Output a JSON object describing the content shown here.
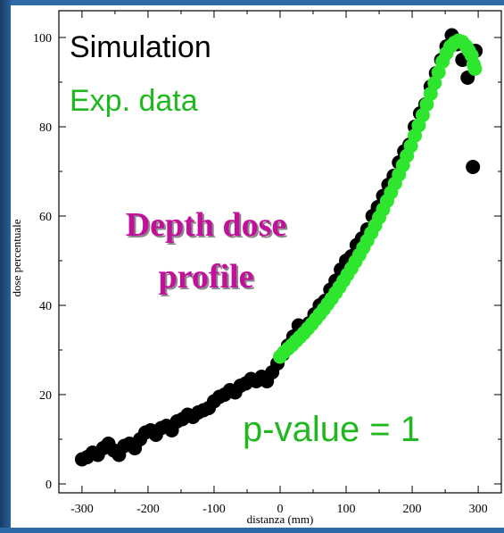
{
  "chart_data": {
    "type": "scatter",
    "title": "",
    "xlabel": "distanza (mm)",
    "ylabel": "dose percentuale",
    "xlim": [
      -335,
      335
    ],
    "ylim": [
      -2,
      106
    ],
    "xticks": [
      -300,
      -200,
      -100,
      0,
      100,
      200,
      300
    ],
    "yticks": [
      0,
      20,
      40,
      60,
      80,
      100
    ],
    "grid": false,
    "legend_position": "top-left",
    "legend": {
      "simulation": "Simulation",
      "exp_data": "Exp. data"
    },
    "annotations": {
      "title_line1": "Depth dose",
      "title_line2": "profile",
      "pvalue": "p-value = 1"
    },
    "series": [
      {
        "name": "Simulation",
        "color": "#000000",
        "x": [
          -300,
          -292,
          -284,
          -276,
          -268,
          -260,
          -252,
          -244,
          -236,
          -228,
          -220,
          -212,
          -204,
          -196,
          -188,
          -180,
          -172,
          -164,
          -156,
          -148,
          -140,
          -132,
          -124,
          -116,
          -108,
          -100,
          -92,
          -84,
          -76,
          -68,
          -60,
          -52,
          -44,
          -36,
          -28,
          -20,
          -12,
          -4,
          4,
          12,
          20,
          28,
          36,
          44,
          52,
          60,
          68,
          76,
          84,
          92,
          100,
          108,
          116,
          124,
          132,
          140,
          148,
          156,
          164,
          172,
          180,
          188,
          196,
          204,
          212,
          220,
          228,
          236,
          244,
          252,
          260,
          268,
          276,
          284,
          292,
          296
        ],
        "y": [
          5.5,
          6.0,
          7.0,
          6.5,
          8.0,
          9.0,
          7.5,
          6.5,
          8.5,
          9.0,
          8.0,
          10.0,
          11.5,
          12.0,
          11.0,
          12.5,
          13.0,
          12.0,
          14.0,
          14.5,
          15.5,
          15.0,
          16.0,
          16.5,
          17.0,
          18.5,
          19.5,
          20.0,
          21.0,
          20.5,
          22.0,
          22.5,
          23.5,
          23.0,
          24.0,
          23.0,
          25.0,
          27.0,
          29.0,
          31.0,
          33.0,
          35.5,
          34.0,
          36.0,
          38.0,
          40.0,
          41.0,
          43.5,
          45.5,
          48.0,
          50.0,
          51.0,
          53.5,
          55.0,
          57.0,
          60.0,
          62.0,
          64.5,
          67.0,
          69.0,
          72.0,
          74.5,
          76.0,
          80.0,
          83.0,
          85.0,
          89.0,
          92.0,
          95.0,
          98.0,
          100.5,
          98.5,
          95.0,
          91.0,
          71.0,
          97.0
        ]
      },
      {
        "name": "Exp. data",
        "color": "#2ee62e",
        "x": [
          0,
          6,
          12,
          18,
          24,
          30,
          36,
          42,
          48,
          54,
          60,
          66,
          72,
          78,
          84,
          90,
          96,
          102,
          108,
          114,
          120,
          126,
          132,
          138,
          144,
          150,
          156,
          162,
          168,
          174,
          180,
          186,
          192,
          198,
          204,
          210,
          216,
          222,
          228,
          234,
          240,
          246,
          252,
          258,
          264,
          270,
          276,
          282,
          286,
          290,
          293,
          295
        ],
        "y": [
          28.5,
          29.5,
          30.3,
          31.1,
          32.0,
          32.9,
          33.8,
          34.8,
          35.8,
          36.9,
          38.0,
          39.1,
          40.3,
          41.5,
          42.8,
          44.1,
          45.5,
          46.9,
          48.3,
          49.8,
          51.3,
          52.9,
          54.5,
          56.2,
          57.9,
          59.7,
          61.5,
          63.4,
          65.3,
          67.3,
          69.3,
          71.4,
          73.5,
          75.7,
          78.0,
          80.3,
          82.6,
          85.0,
          87.4,
          89.8,
          92.2,
          94.6,
          96.5,
          98.0,
          98.8,
          99.3,
          99.0,
          98.0,
          97.0,
          96.0,
          94.0,
          93.0
        ]
      }
    ]
  }
}
